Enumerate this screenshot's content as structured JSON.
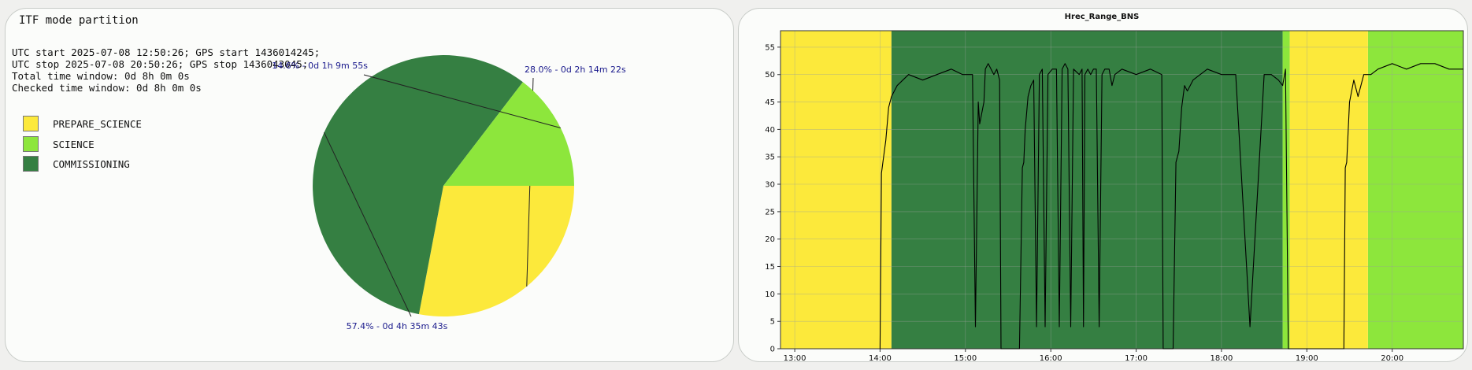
{
  "left_panel": {
    "title": "ITF mode partition",
    "info_lines": [
      "UTC start 2025-07-08 12:50:26; GPS start 1436014245;",
      "UTC stop 2025-07-08 20:50:26; GPS stop 1436043045;",
      "Total time window: 0d 8h 0m 0s",
      "Checked time window: 0d 8h 0m 0s"
    ],
    "legend": [
      {
        "label": "PREPARE_SCIENCE",
        "color": "#fce93b"
      },
      {
        "label": "SCIENCE",
        "color": "#8de63c"
      },
      {
        "label": "COMMISSIONING",
        "color": "#357f42"
      }
    ]
  },
  "chart_data": [
    {
      "type": "pie",
      "slices": [
        {
          "name": "PREPARE_SCIENCE",
          "value": 28.0,
          "label": "28.0% - 0d 2h 14m 22s",
          "color": "#fce93b"
        },
        {
          "name": "COMMISSIONING",
          "value": 57.4,
          "label": "57.4% - 0d 4h 35m 43s",
          "color": "#357f42"
        },
        {
          "name": "SCIENCE",
          "value": 14.6,
          "label": "14.6% - 0d 1h 9m 55s",
          "color": "#8de63c"
        }
      ]
    },
    {
      "type": "line",
      "title": "Hrec_Range_BNS",
      "xlabel": "",
      "ylabel": "",
      "xlim": [
        "12:50",
        "20:50"
      ],
      "ylim": [
        0,
        58
      ],
      "x_ticks": [
        "13:00",
        "14:00",
        "15:00",
        "16:00",
        "17:00",
        "18:00",
        "19:00",
        "20:00"
      ],
      "y_ticks": [
        0,
        5,
        10,
        15,
        20,
        25,
        30,
        35,
        40,
        45,
        50,
        55
      ],
      "grid": true,
      "background_bands": [
        {
          "mode": "PREPARE_SCIENCE",
          "start": "12:50",
          "end": "14:08",
          "color": "#fce93b"
        },
        {
          "mode": "COMMISSIONING",
          "start": "14:08",
          "end": "18:43",
          "color": "#357f42"
        },
        {
          "mode": "SCIENCE",
          "start": "18:43",
          "end": "18:48",
          "color": "#8de63c"
        },
        {
          "mode": "PREPARE_SCIENCE",
          "start": "18:48",
          "end": "19:43",
          "color": "#fce93b"
        },
        {
          "mode": "SCIENCE",
          "start": "19:43",
          "end": "20:50",
          "color": "#8de63c"
        }
      ],
      "series": [
        {
          "x": [
            "14:00",
            "14:01",
            "14:02",
            "14:04",
            "14:06",
            "14:08",
            "14:12",
            "14:20",
            "14:30",
            "14:40",
            "14:50",
            "14:58",
            "15:02",
            "15:05",
            "15:07",
            "15:09",
            "15:10",
            "15:13",
            "15:14",
            "15:16",
            "15:18",
            "15:20",
            "15:22",
            "15:24",
            "15:25",
            "15:38",
            "15:40",
            "15:41",
            "15:42",
            "15:44",
            "15:46",
            "15:48",
            "15:50",
            "15:52",
            "15:54",
            "15:56",
            "15:58",
            "16:01",
            "16:04",
            "16:06",
            "16:08",
            "16:10",
            "16:12",
            "16:14",
            "16:16",
            "16:20",
            "16:22",
            "16:23",
            "16:24",
            "16:26",
            "16:28",
            "16:30",
            "16:32",
            "16:34",
            "16:36",
            "16:38",
            "16:41",
            "16:43",
            "16:45",
            "16:50",
            "17:00",
            "17:10",
            "17:18",
            "17:19",
            "17:20",
            "17:26",
            "17:28",
            "17:30",
            "17:32",
            "17:34",
            "17:36",
            "17:40",
            "17:50",
            "18:00",
            "18:10",
            "18:20",
            "18:30",
            "18:35",
            "18:40",
            "18:43",
            "18:45",
            "18:47",
            "18:48",
            "19:20",
            "19:26",
            "19:27",
            "19:28",
            "19:30",
            "19:33",
            "19:36",
            "19:40",
            "19:45",
            "19:50",
            "20:00",
            "20:10",
            "20:20",
            "20:30",
            "20:40",
            "20:50"
          ],
          "y": [
            0,
            32,
            34,
            38,
            44,
            46,
            48,
            50,
            49,
            50,
            51,
            50,
            50,
            50,
            4,
            45,
            41,
            45,
            51,
            52,
            51,
            50,
            51,
            49,
            0,
            0,
            33,
            34,
            40,
            46,
            48,
            49,
            4,
            50,
            51,
            4,
            50,
            51,
            51,
            4,
            51,
            52,
            51,
            4,
            51,
            50,
            51,
            4,
            50,
            51,
            50,
            51,
            51,
            4,
            50,
            51,
            51,
            48,
            50,
            51,
            50,
            51,
            50,
            0,
            0,
            0,
            34,
            36,
            44,
            48,
            47,
            49,
            51,
            50,
            50,
            4,
            50,
            50,
            49,
            48,
            51,
            0,
            0,
            0,
            0,
            33,
            34,
            45,
            49,
            46,
            50,
            50,
            51,
            52,
            51,
            52,
            52,
            51,
            51
          ]
        }
      ]
    }
  ]
}
